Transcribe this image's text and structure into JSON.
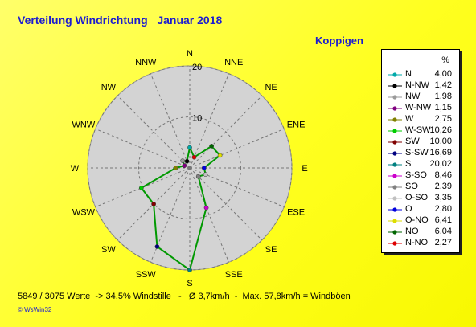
{
  "header": {
    "title": "Verteilung Windrichtung   Januar 2018",
    "station": "Koppigen"
  },
  "chart_data": {
    "type": "radar",
    "axis_max": 20,
    "rings": [
      10,
      20
    ],
    "ring_labels": [
      "10",
      "20"
    ],
    "directions": [
      "N",
      "NNE",
      "NE",
      "ENE",
      "E",
      "ESE",
      "SE",
      "SSE",
      "S",
      "SSW",
      "SW",
      "WSW",
      "W",
      "WNW",
      "NW",
      "NNW"
    ],
    "series": [
      {
        "name": "N",
        "values": [
          4.0
        ]
      },
      {
        "name": "N-NW",
        "values": [
          1.42
        ]
      },
      {
        "name": "NW",
        "values": [
          1.98
        ]
      },
      {
        "name": "W-NW",
        "values": [
          1.15
        ]
      },
      {
        "name": "W",
        "values": [
          2.75
        ]
      },
      {
        "name": "W-SW",
        "values": [
          10.26
        ]
      },
      {
        "name": "SW",
        "values": [
          10.0
        ]
      },
      {
        "name": "S-SW",
        "values": [
          16.69
        ]
      },
      {
        "name": "S",
        "values": [
          20.02
        ]
      },
      {
        "name": "S-SO",
        "values": [
          8.46
        ]
      },
      {
        "name": "SO",
        "values": [
          2.39
        ]
      },
      {
        "name": "O-SO",
        "values": [
          3.35
        ]
      },
      {
        "name": "O",
        "values": [
          2.8
        ]
      },
      {
        "name": "O-NO",
        "values": [
          6.41
        ]
      },
      {
        "name": "NO",
        "values": [
          6.04
        ]
      },
      {
        "name": "N-NO",
        "values": [
          2.27
        ]
      }
    ],
    "legend_unit": "%",
    "legend_placement": "right"
  },
  "legend": {
    "unit": "%",
    "items": [
      {
        "name": "N",
        "value": "4,00",
        "color": "#00aaaa"
      },
      {
        "name": "N-NW",
        "value": "1,42",
        "color": "#000000"
      },
      {
        "name": "NW",
        "value": "1,98",
        "color": "#9a9a9a"
      },
      {
        "name": "W-NW",
        "value": "1,15",
        "color": "#800080"
      },
      {
        "name": "W",
        "value": "2,75",
        "color": "#808000"
      },
      {
        "name": "W-SW",
        "value": "10,26",
        "color": "#00cc00"
      },
      {
        "name": "SW",
        "value": "10,00",
        "color": "#800000"
      },
      {
        "name": "S-SW",
        "value": "16,69",
        "color": "#000080"
      },
      {
        "name": "S",
        "value": "20,02",
        "color": "#008080"
      },
      {
        "name": "S-SO",
        "value": "8,46",
        "color": "#cc00cc"
      },
      {
        "name": "SO",
        "value": "2,39",
        "color": "#808080"
      },
      {
        "name": "O-SO",
        "value": "3,35",
        "color": "#c0c0c0"
      },
      {
        "name": "O",
        "value": "2,80",
        "color": "#0000dd"
      },
      {
        "name": "O-NO",
        "value": "6,41",
        "color": "#dddd00"
      },
      {
        "name": "NO",
        "value": "6,04",
        "color": "#006600"
      },
      {
        "name": "N-NO",
        "value": "2,27",
        "color": "#dd0000"
      }
    ]
  },
  "footer": {
    "stats": "5849 / 3075 Werte  -> 34.5% Windstille   -   Ø 3,7km/h  -  Max. 57,8km/h = Windböen",
    "credit": "© WsWin32"
  },
  "colors": {
    "title": "#1c1cd0",
    "plot_fill": "#d3d3d3",
    "line": "#009900",
    "background": "#ffff33"
  }
}
